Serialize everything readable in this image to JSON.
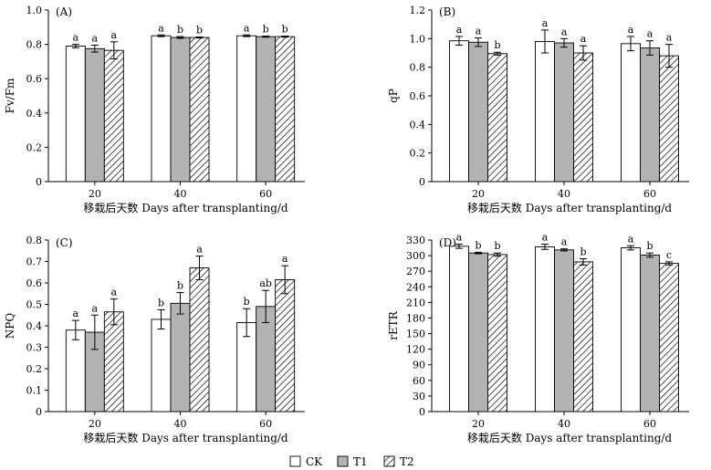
{
  "figure": {
    "legend": [
      {
        "name": "CK",
        "style": "white"
      },
      {
        "name": "T1",
        "style": "gray"
      },
      {
        "name": "T2",
        "style": "hatch"
      }
    ],
    "colors": {
      "ck": "#ffffff",
      "t1": "#b3b3b3",
      "t2_hatch": "#000000",
      "axis": "#000000"
    }
  },
  "chart_data": [
    {
      "type": "bar",
      "panel": "(A)",
      "ylabel": "Fv/Fm",
      "xlabel": "",
      "ylim": [
        0,
        1.0
      ],
      "yticks": [
        "0",
        "0.2",
        "0.4",
        "0.6",
        "0.8",
        "1.0"
      ],
      "categories": [
        "20",
        "40",
        "60"
      ],
      "series": [
        {
          "name": "CK",
          "values": [
            0.79,
            0.85,
            0.85
          ],
          "errors": [
            0.01,
            0.005,
            0.005
          ],
          "labels": [
            "a",
            "a",
            "a"
          ]
        },
        {
          "name": "T1",
          "values": [
            0.775,
            0.84,
            0.845
          ],
          "errors": [
            0.02,
            0.005,
            0.003
          ],
          "labels": [
            "a",
            "b",
            "b"
          ]
        },
        {
          "name": "T2",
          "values": [
            0.765,
            0.84,
            0.845
          ],
          "errors": [
            0.05,
            0.003,
            0.003
          ],
          "labels": [
            "a",
            "b",
            "b"
          ]
        }
      ]
    },
    {
      "type": "bar",
      "panel": "(B)",
      "ylabel": "qP",
      "xlabel": "",
      "ylim": [
        0,
        1.2
      ],
      "yticks": [
        "0",
        "0.2",
        "0.4",
        "0.6",
        "0.8",
        "1.0",
        "1.2"
      ],
      "categories": [
        "20",
        "40",
        "60"
      ],
      "series": [
        {
          "name": "CK",
          "values": [
            0.985,
            0.98,
            0.965
          ],
          "errors": [
            0.03,
            0.08,
            0.05
          ],
          "labels": [
            "a",
            "a",
            "a"
          ]
        },
        {
          "name": "T1",
          "values": [
            0.975,
            0.97,
            0.935
          ],
          "errors": [
            0.03,
            0.03,
            0.05
          ],
          "labels": [
            "a",
            "a",
            "a"
          ]
        },
        {
          "name": "T2",
          "values": [
            0.895,
            0.9,
            0.88
          ],
          "errors": [
            0.01,
            0.05,
            0.08
          ],
          "labels": [
            "b",
            "a",
            "a"
          ]
        }
      ]
    },
    {
      "type": "bar",
      "panel": "(C)",
      "ylabel": "NPQ",
      "xlabel": "移栽后天数 Days after transplanting/d",
      "ylim": [
        0,
        0.8
      ],
      "yticks": [
        "0",
        "0.1",
        "0.2",
        "0.3",
        "0.4",
        "0.5",
        "0.6",
        "0.7",
        "0.8"
      ],
      "categories": [
        "20",
        "40",
        "60"
      ],
      "series": [
        {
          "name": "CK",
          "values": [
            0.38,
            0.43,
            0.415
          ],
          "errors": [
            0.045,
            0.045,
            0.065
          ],
          "labels": [
            "a",
            "b",
            "b"
          ]
        },
        {
          "name": "T1",
          "values": [
            0.37,
            0.505,
            0.49
          ],
          "errors": [
            0.08,
            0.05,
            0.075
          ],
          "labels": [
            "a",
            "b",
            "ab"
          ]
        },
        {
          "name": "T2",
          "values": [
            0.465,
            0.67,
            0.615
          ],
          "errors": [
            0.06,
            0.055,
            0.065
          ],
          "labels": [
            "a",
            "a",
            "a"
          ]
        }
      ]
    },
    {
      "type": "bar",
      "panel": "(D)",
      "ylabel": "rETR",
      "xlabel": "移栽后天数 Days after transplanting/d",
      "ylim": [
        0,
        330
      ],
      "yticks": [
        "0",
        "30",
        "60",
        "90",
        "120",
        "150",
        "180",
        "210",
        "240",
        "270",
        "300",
        "330"
      ],
      "categories": [
        "20",
        "40",
        "60"
      ],
      "series": [
        {
          "name": "CK",
          "values": [
            318,
            317,
            315
          ],
          "errors": [
            4,
            5,
            4
          ],
          "labels": [
            "a",
            "a",
            "a"
          ]
        },
        {
          "name": "T1",
          "values": [
            305,
            311,
            301
          ],
          "errors": [
            1.5,
            2,
            4
          ],
          "labels": [
            "b",
            "a",
            "b"
          ]
        },
        {
          "name": "T2",
          "values": [
            302,
            288,
            285
          ],
          "errors": [
            3,
            6,
            3
          ],
          "labels": [
            "b",
            "b",
            "c"
          ]
        }
      ]
    }
  ]
}
